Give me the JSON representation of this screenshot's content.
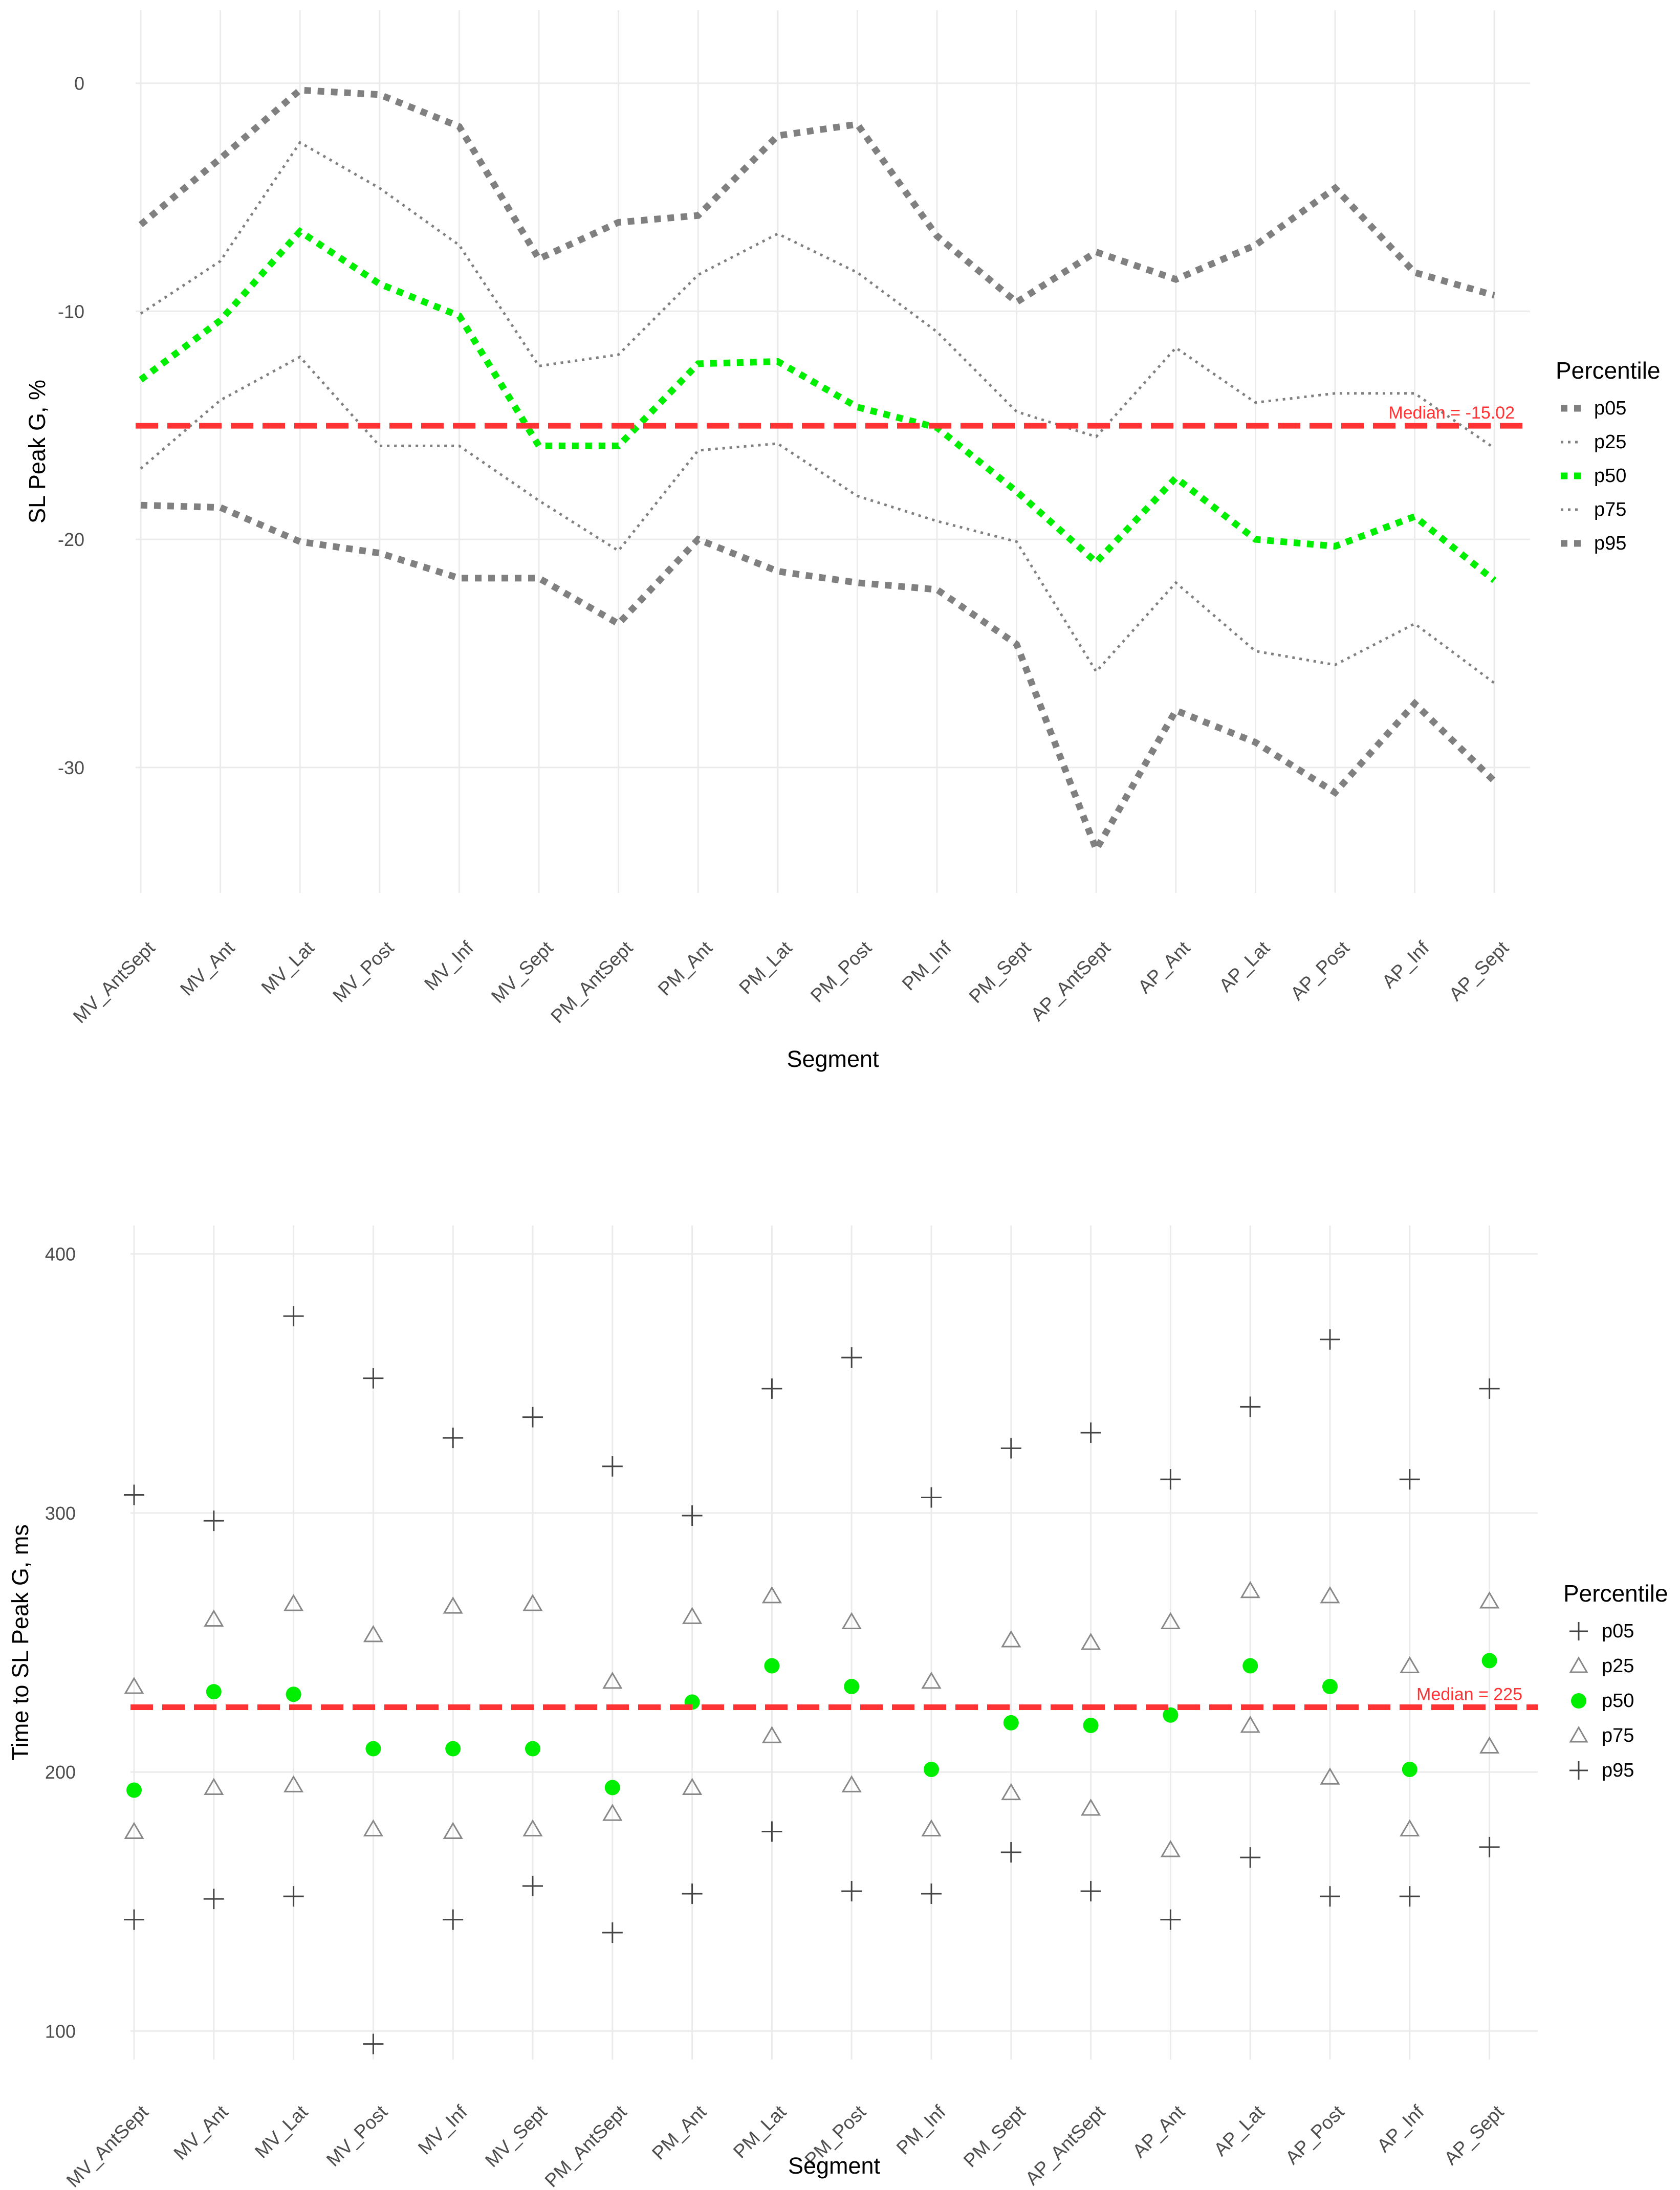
{
  "chart_data": [
    {
      "type": "line",
      "xlabel": "Segment",
      "ylabel": "SL Peak G, %",
      "categories": [
        "MV_AntSept",
        "MV_Ant",
        "MV_Lat",
        "MV_Post",
        "MV_Inf",
        "MV_Sept",
        "PM_AntSept",
        "PM_Ant",
        "PM_Lat",
        "PM_Post",
        "PM_Inf",
        "PM_Sept",
        "AP_AntSept",
        "AP_Ant",
        "AP_Lat",
        "AP_Post",
        "AP_Inf",
        "AP_Sept"
      ],
      "ylim": [
        -35.5,
        3.2
      ],
      "yticks": [
        0,
        -10,
        -20,
        -30
      ],
      "ytick_labels": [
        "0",
        "-10",
        "-20",
        "-30"
      ],
      "grid": true,
      "legend": {
        "title": "Percentile",
        "position": "right"
      },
      "reference_line": {
        "value": -15.02,
        "label": "Median = -15.02",
        "color": "#ff3333"
      },
      "series": [
        {
          "name": "p05",
          "color": "#808080",
          "style": "thick-dotted",
          "values": [
            -18.5,
            -18.6,
            -20.1,
            -20.6,
            -21.7,
            -21.7,
            -23.7,
            -20.0,
            -21.4,
            -21.9,
            -22.2,
            -24.6,
            -33.6,
            -27.5,
            -28.9,
            -31.1,
            -27.2,
            -30.6
          ]
        },
        {
          "name": "p25",
          "color": "#808080",
          "style": "thin-dotted",
          "values": [
            -16.9,
            -13.9,
            -12.0,
            -15.9,
            -15.9,
            -18.3,
            -20.5,
            -16.1,
            -15.8,
            -18.1,
            -19.2,
            -20.1,
            -25.8,
            -21.9,
            -24.9,
            -25.5,
            -23.7,
            -26.3
          ]
        },
        {
          "name": "p50",
          "color": "#00ee00",
          "style": "thick-dotted",
          "values": [
            -13.0,
            -10.4,
            -6.5,
            -8.8,
            -10.2,
            -15.9,
            -15.9,
            -12.3,
            -12.2,
            -14.2,
            -15.1,
            -17.9,
            -21.0,
            -17.3,
            -20.0,
            -20.3,
            -19.0,
            -21.8
          ]
        },
        {
          "name": "p75",
          "color": "#808080",
          "style": "thin-dotted",
          "values": [
            -10.1,
            -7.8,
            -2.6,
            -4.6,
            -7.1,
            -12.4,
            -11.9,
            -8.4,
            -6.6,
            -8.3,
            -10.9,
            -14.4,
            -15.5,
            -11.6,
            -14.0,
            -13.6,
            -13.6,
            -16.0
          ]
        },
        {
          "name": "p95",
          "color": "#808080",
          "style": "thick-dotted",
          "values": [
            -6.2,
            -3.3,
            -0.3,
            -0.5,
            -1.9,
            -7.7,
            -6.1,
            -5.8,
            -2.3,
            -1.8,
            -6.7,
            -9.6,
            -7.4,
            -8.6,
            -7.1,
            -4.6,
            -8.3,
            -9.3
          ]
        }
      ]
    },
    {
      "type": "scatter",
      "xlabel": "Segment",
      "ylabel": "Time to SL Peak G, ms",
      "categories": [
        "MV_AntSept",
        "MV_Ant",
        "MV_Lat",
        "MV_Post",
        "MV_Inf",
        "MV_Sept",
        "PM_AntSept",
        "PM_Ant",
        "PM_Lat",
        "PM_Post",
        "PM_Inf",
        "PM_Sept",
        "AP_AntSept",
        "AP_Ant",
        "AP_Lat",
        "AP_Post",
        "AP_Inf",
        "AP_Sept"
      ],
      "ylim": [
        89,
        411
      ],
      "yticks": [
        100,
        200,
        300,
        400
      ],
      "ytick_labels": [
        "100",
        "200",
        "300",
        "400"
      ],
      "grid": true,
      "legend": {
        "title": "Percentile",
        "position": "right"
      },
      "reference_line": {
        "value": 225,
        "label": "Median = 225",
        "color": "#ff3333"
      },
      "series": [
        {
          "name": "p05",
          "color": "#444444",
          "marker": "plus",
          "values": [
            143,
            151,
            152,
            95,
            143,
            156,
            138,
            153,
            177,
            154,
            153,
            169,
            154,
            143,
            167,
            152,
            152,
            171
          ]
        },
        {
          "name": "p25",
          "color": "#888888",
          "marker": "open-triangle",
          "values": [
            177,
            194,
            195,
            178,
            177,
            178,
            184,
            194,
            214,
            195,
            178,
            192,
            186,
            170,
            218,
            198,
            178,
            210
          ]
        },
        {
          "name": "p50",
          "color": "#00ee00",
          "marker": "filled-circle",
          "values": [
            193,
            231,
            230,
            209,
            209,
            209,
            194,
            227,
            241,
            233,
            201,
            219,
            218,
            222,
            241,
            233,
            201,
            243
          ]
        },
        {
          "name": "p75",
          "color": "#888888",
          "marker": "open-triangle",
          "values": [
            233,
            259,
            265,
            253,
            264,
            265,
            235,
            260,
            268,
            258,
            235,
            251,
            250,
            258,
            270,
            268,
            241,
            266
          ]
        },
        {
          "name": "p95",
          "color": "#444444",
          "marker": "plus",
          "values": [
            307,
            297,
            376,
            352,
            329,
            337,
            318,
            299,
            348,
            360,
            306,
            325,
            331,
            313,
            341,
            367,
            313,
            348
          ]
        }
      ]
    }
  ]
}
